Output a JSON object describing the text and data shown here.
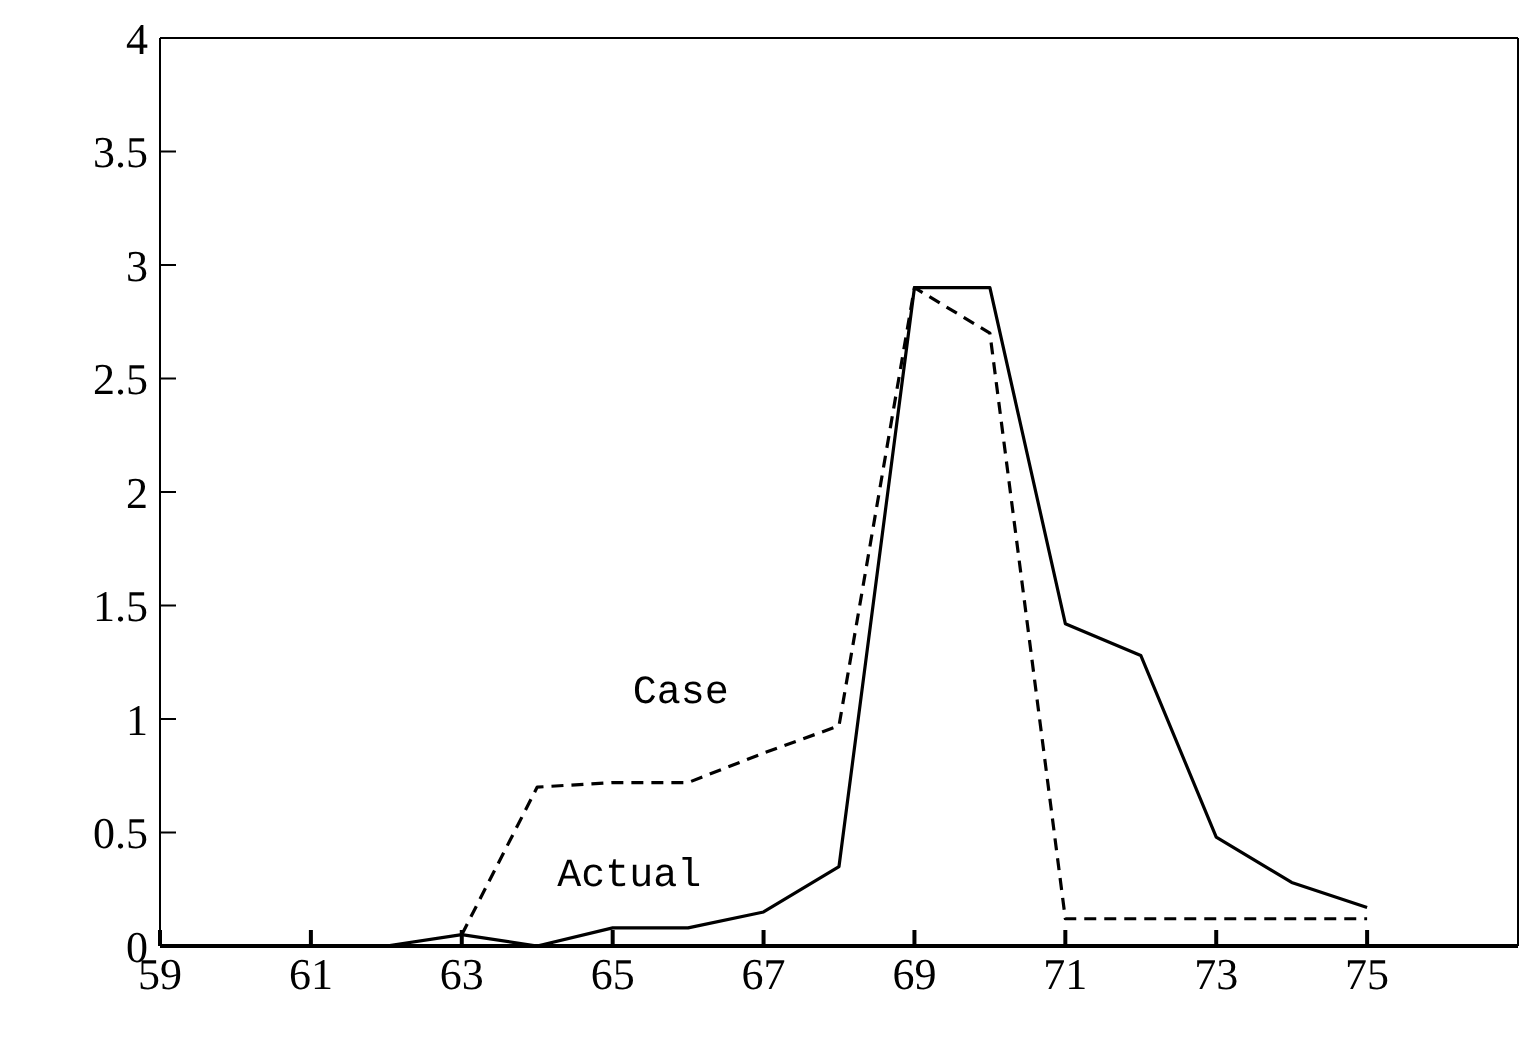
{
  "chart_data": {
    "type": "line",
    "xlim": [
      59,
      77
    ],
    "xticks": [
      59,
      61,
      63,
      65,
      67,
      69,
      71,
      73,
      75
    ],
    "ylim": [
      0,
      4
    ],
    "yticks": [
      0,
      0.5,
      1,
      1.5,
      2,
      2.5,
      3,
      3.5,
      4
    ],
    "grid": false,
    "legend": false,
    "marker": "none",
    "series": [
      {
        "name": "Case",
        "color": "#000000",
        "line_style": "dashed",
        "x": [
          63,
          64,
          65,
          66,
          67,
          68,
          69,
          70,
          71,
          72,
          73,
          74,
          75
        ],
        "values": [
          0.05,
          0.7,
          0.72,
          0.72,
          0.85,
          0.97,
          2.9,
          2.7,
          0.12,
          0.12,
          0.12,
          0.12,
          0.12
        ]
      },
      {
        "name": "Actual",
        "color": "#000000",
        "line_style": "solid",
        "x": [
          62,
          63,
          64,
          65,
          66,
          67,
          68,
          69,
          70,
          71,
          72,
          73,
          74,
          75
        ],
        "values": [
          0,
          0.05,
          0,
          0.08,
          0.08,
          0.15,
          0.35,
          2.9,
          2.9,
          1.42,
          1.28,
          0.48,
          0.28,
          0.17
        ]
      }
    ]
  }
}
